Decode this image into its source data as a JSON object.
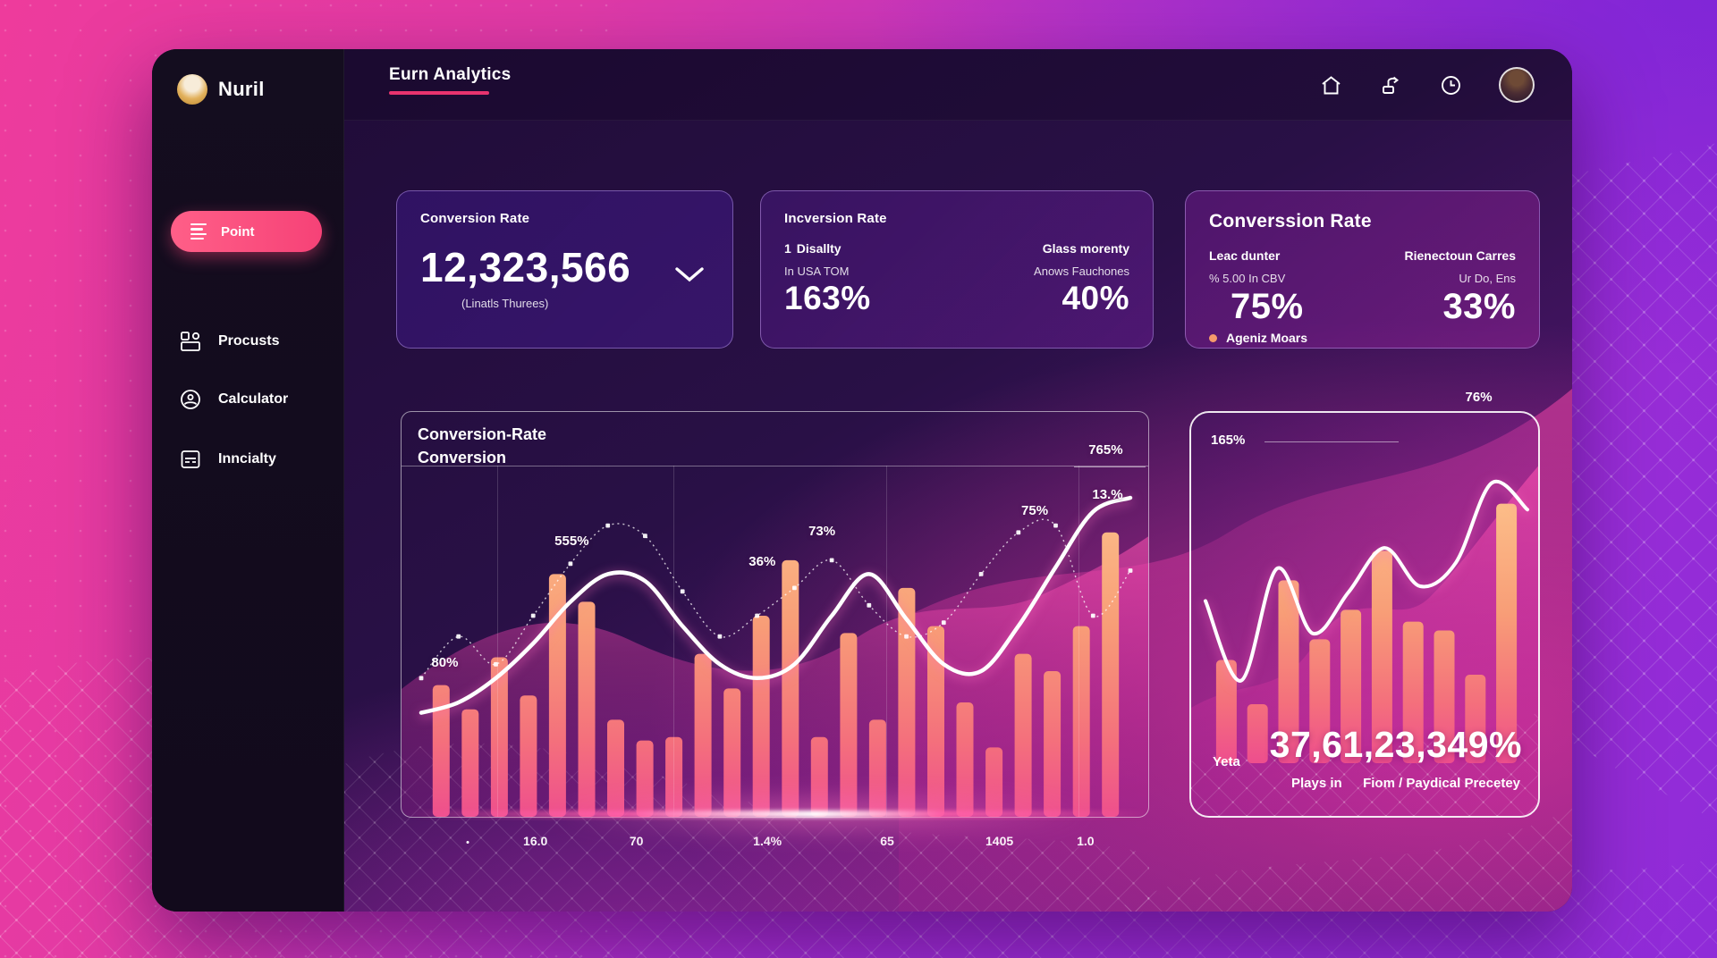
{
  "sidebar": {
    "brand": "Nuril",
    "items": [
      {
        "label": "Point"
      },
      {
        "label": "Procusts"
      },
      {
        "label": "Calculator"
      },
      {
        "label": "Inncialty"
      }
    ]
  },
  "topbar": {
    "title": "Eurn Analytics"
  },
  "stats": {
    "card1": {
      "title": "Conversion Rate",
      "value": "12,323,566",
      "subtitle": "(Linatls Thurees)"
    },
    "card2": {
      "title": "Incversion Rate",
      "left_marker": "1",
      "left_header": "Disallty",
      "left_sub": "In USA TOM",
      "left_value": "163%",
      "right_header": "Glass morenty",
      "right_sub": "Anows Fauchones",
      "right_value": "40%"
    },
    "card3": {
      "title": "Converssion Rate",
      "left_header": "Leac dunter",
      "left_sub": "% 5.00 In CBV",
      "left_value": "75%",
      "left_legend": "Ageniz Moars",
      "right_header": "Rienectoun Carres",
      "right_sub": "Ur Do, Ens",
      "right_value": "33%"
    }
  },
  "chart_data": [
    {
      "id": "main-conversion-chart",
      "type": "bar",
      "title": "Conversion-Rate Conversion",
      "title_line1": "Conversion-Rate",
      "title_line2": "Conversion",
      "ylim": [
        0,
        100
      ],
      "bars": [
        38,
        31,
        46,
        35,
        70,
        62,
        28,
        22,
        23,
        47,
        37,
        58,
        74,
        23,
        53,
        28,
        66,
        55,
        33,
        20,
        47,
        42,
        55,
        82
      ],
      "series": [
        {
          "name": "trend-line",
          "values": [
            30,
            33,
            40,
            50,
            62,
            70,
            68,
            55,
            44,
            40,
            44,
            58,
            70,
            57,
            44,
            42,
            55,
            72,
            88,
            92
          ]
        },
        {
          "name": "dotted-line",
          "values": [
            40,
            52,
            44,
            58,
            73,
            84,
            81,
            65,
            52,
            58,
            66,
            74,
            61,
            52,
            56,
            70,
            82,
            84,
            58,
            71
          ]
        }
      ],
      "x_labels": [
        "16.0",
        "70",
        "1.4%",
        "65",
        "1405",
        "1.0"
      ],
      "annotations": [
        {
          "text": "80%"
        },
        {
          "text": "555%"
        },
        {
          "text": "36%"
        },
        {
          "text": "73%"
        },
        {
          "text": "75%"
        },
        {
          "text": "765%"
        },
        {
          "text": "13.%"
        }
      ]
    },
    {
      "id": "side-conversion-chart",
      "type": "bar",
      "ylim": [
        0,
        100
      ],
      "bars": [
        35,
        20,
        62,
        42,
        52,
        72,
        48,
        45,
        30,
        88
      ],
      "series": [
        {
          "name": "trend-line",
          "values": [
            55,
            28,
            66,
            44,
            58,
            73,
            60,
            68,
            95,
            86
          ]
        }
      ],
      "top_left_label": "165%",
      "top_right_label": "76%",
      "footer_label": "Yeta",
      "footer_value": "37,61,23,349%",
      "footer_sub_left": "Plays in",
      "footer_sub_right": "Fiom / Paydical Precetey"
    }
  ],
  "colors": {
    "accent_pink": "#f4417c",
    "underline_pink": "#e8336e",
    "bar_top": "#fdc88e",
    "bar_bottom": "#ee4f8d",
    "line_white": "#ffffff"
  }
}
